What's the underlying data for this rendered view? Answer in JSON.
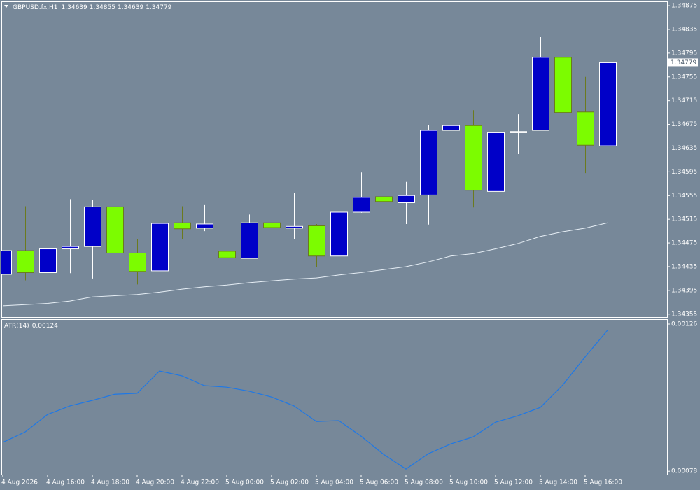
{
  "chart_data": [
    {
      "type": "candlestick",
      "title": "GBPUSD.fx,H1",
      "categories": [
        "4 Aug 2026",
        null,
        "4 Aug 16:00",
        null,
        "4 Aug 18:00",
        null,
        "4 Aug 20:00",
        null,
        "4 Aug 22:00",
        null,
        "5 Aug 00:00",
        null,
        "5 Aug 02:00",
        null,
        "5 Aug 04:00",
        null,
        "5 Aug 06:00",
        null,
        "5 Aug 08:00",
        null,
        "5 Aug 10:00",
        null,
        "5 Aug 12:00",
        null,
        "5 Aug 14:00",
        null,
        "5 Aug 16:00",
        null
      ],
      "ohlc": [
        [
          1.34422,
          1.34545,
          1.34401,
          1.34462
        ],
        [
          1.34462,
          1.34537,
          1.34412,
          1.34425
        ],
        [
          1.34425,
          1.3452,
          1.34372,
          1.34465
        ],
        [
          1.34465,
          1.34549,
          1.34424,
          1.34469
        ],
        [
          1.34469,
          1.34548,
          1.34415,
          1.34536
        ],
        [
          1.34536,
          1.34556,
          1.3445,
          1.34458
        ],
        [
          1.34458,
          1.34481,
          1.34405,
          1.34427
        ],
        [
          1.34428,
          1.34524,
          1.34391,
          1.34508
        ],
        [
          1.34509,
          1.34537,
          1.34481,
          1.34499
        ],
        [
          1.345,
          1.34539,
          1.34495,
          1.34507
        ],
        [
          1.34461,
          1.34522,
          1.34408,
          1.3445
        ],
        [
          1.34449,
          1.34523,
          1.34449,
          1.34509
        ],
        [
          1.34509,
          1.34521,
          1.34471,
          1.34501
        ],
        [
          1.345,
          1.34559,
          1.34481,
          1.34503
        ],
        [
          1.34504,
          1.34507,
          1.34435,
          1.34453
        ],
        [
          1.34453,
          1.34579,
          1.34448,
          1.34527
        ],
        [
          1.34527,
          1.34594,
          1.34526,
          1.34552
        ],
        [
          1.34553,
          1.34594,
          1.34533,
          1.34545
        ],
        [
          1.34543,
          1.34578,
          1.34507,
          1.34555
        ],
        [
          1.34556,
          1.34674,
          1.34506,
          1.34665
        ],
        [
          1.34665,
          1.34686,
          1.34566,
          1.34673
        ],
        [
          1.34673,
          1.34699,
          1.34535,
          1.34564
        ],
        [
          1.34562,
          1.34668,
          1.34545,
          1.34661
        ],
        [
          1.34661,
          1.34692,
          1.34625,
          1.34663
        ],
        [
          1.34665,
          1.34822,
          1.34665,
          1.34788
        ],
        [
          1.34788,
          1.34835,
          1.34664,
          1.34695
        ],
        [
          1.34696,
          1.34755,
          1.34593,
          1.3464
        ],
        [
          1.34639,
          1.34855,
          1.34639,
          1.34779
        ]
      ],
      "up_color": "#0000c8",
      "up_wick": "#ffffff",
      "down_color": "#7cfc00",
      "down_wick": "#6b7a1e",
      "ma": {
        "color": "#e6eef5",
        "values": [
          1.34369,
          1.34371,
          1.34373,
          1.34377,
          1.34384,
          1.34386,
          1.34388,
          1.34392,
          1.34397,
          1.34401,
          1.34404,
          1.34408,
          1.34411,
          1.34414,
          1.34416,
          1.34421,
          1.34425,
          1.3443,
          1.34435,
          1.34443,
          1.34453,
          1.34457,
          1.34465,
          1.34474,
          1.34486,
          1.34494,
          1.345,
          1.34509
        ]
      },
      "ylim": [
        1.3435,
        1.34881
      ],
      "yticks": [
        1.34875,
        1.34835,
        1.34795,
        1.34755,
        1.34715,
        1.34675,
        1.34635,
        1.34595,
        1.34555,
        1.34515,
        1.34475,
        1.34435,
        1.34395,
        1.34355
      ]
    },
    {
      "type": "line",
      "title": "ATR(14)",
      "color": "#1e78e6",
      "values": [
        0.000874,
        0.000908,
        0.000965,
        0.000993,
        0.001011,
        0.001031,
        0.001034,
        0.001107,
        0.001091,
        0.001059,
        0.001054,
        0.001041,
        0.001022,
        0.000993,
        0.000942,
        0.000945,
        0.000894,
        0.000835,
        0.000787,
        0.000837,
        0.000869,
        0.000892,
        0.00094,
        0.000961,
        0.000988,
        0.001061,
        0.001153,
        0.00124
      ],
      "ylim": [
        0.000769,
        0.001276
      ],
      "yticks": [
        0.00126,
        0.00078
      ]
    }
  ]
}
